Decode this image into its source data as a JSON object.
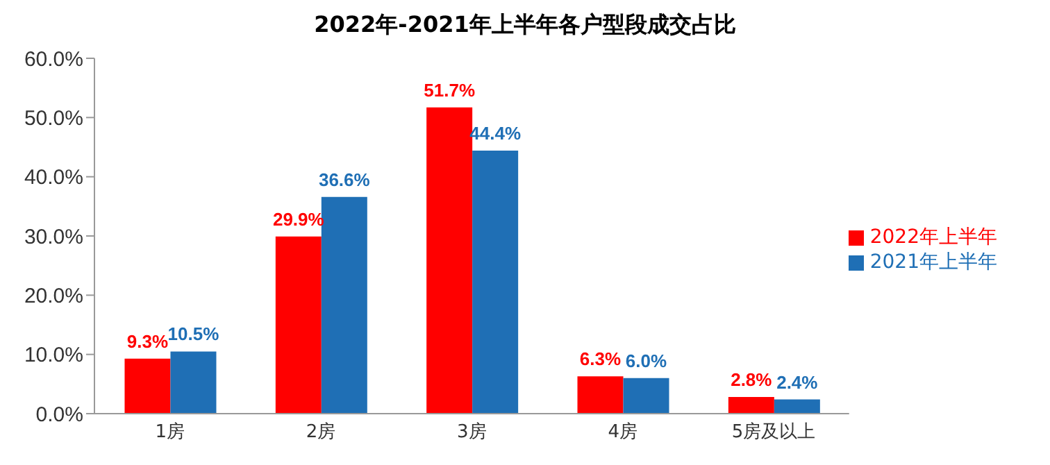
{
  "chart_data": {
    "type": "bar",
    "title": "2022年-2021年上半年各户型段成交占比",
    "categories": [
      "1房",
      "2房",
      "3房",
      "4房",
      "5房及以上"
    ],
    "series": [
      {
        "name": "2022年上半年",
        "color": "#ff0000",
        "values": [
          9.3,
          29.9,
          51.7,
          6.3,
          2.8
        ],
        "value_labels": [
          "9.3%",
          "29.9%",
          "51.7%",
          "6.3%",
          "2.8%"
        ]
      },
      {
        "name": "2021年上半年",
        "color": "#1f6fb5",
        "values": [
          10.5,
          36.6,
          44.4,
          6.0,
          2.4
        ],
        "value_labels": [
          "10.5%",
          "36.6%",
          "44.4%",
          "6.0%",
          "2.4%"
        ]
      }
    ],
    "ylim": [
      0,
      60
    ],
    "yticks": [
      {
        "value": 0,
        "label": "0.0%"
      },
      {
        "value": 10,
        "label": "10.0%"
      },
      {
        "value": 20,
        "label": "20.0%"
      },
      {
        "value": 30,
        "label": "30.0%"
      },
      {
        "value": 40,
        "label": "40.0%"
      },
      {
        "value": 50,
        "label": "50.0%"
      },
      {
        "value": 60,
        "label": "60.0%"
      }
    ],
    "grid": false,
    "legend": "right"
  }
}
